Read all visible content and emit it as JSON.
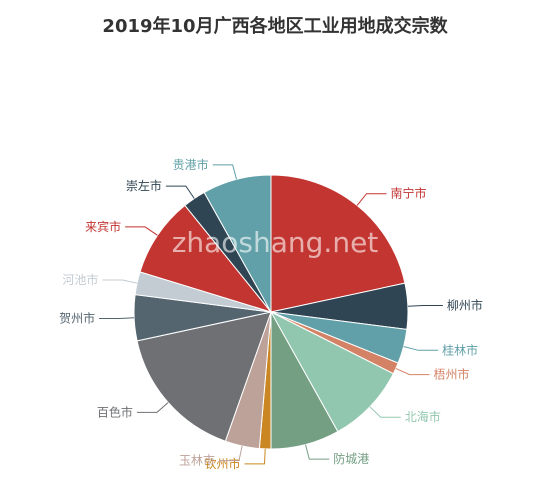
{
  "chart_data": {
    "type": "pie",
    "title": "2019年10月广西各地区工业用地成交宗数",
    "watermark": "zhaoshang.net",
    "slices": [
      {
        "label": "南宁市",
        "value": 16,
        "color": "#c23531"
      },
      {
        "label": "柳州市",
        "value": 4,
        "color": "#2f4554"
      },
      {
        "label": "桂林市",
        "value": 3,
        "color": "#61a0a8"
      },
      {
        "label": "梧州市",
        "value": 1,
        "color": "#d48265"
      },
      {
        "label": "北海市",
        "value": 7,
        "color": "#91c7ae"
      },
      {
        "label": "防城港",
        "value": 6,
        "color": "#749f83"
      },
      {
        "label": "钦州市",
        "value": 1,
        "color": "#ca8622"
      },
      {
        "label": "玉林市",
        "value": 3,
        "color": "#bda29a"
      },
      {
        "label": "百色市",
        "value": 12,
        "color": "#6e7074"
      },
      {
        "label": "贺州市",
        "value": 4,
        "color": "#546570"
      },
      {
        "label": "河池市",
        "value": 2,
        "color": "#c4ccd3"
      },
      {
        "label": "来宾市",
        "value": 7,
        "color": "#c23531"
      },
      {
        "label": "崇左市",
        "value": 2,
        "color": "#2f4554"
      },
      {
        "label": "贵港市",
        "value": 6,
        "color": "#61a0a8"
      }
    ]
  }
}
